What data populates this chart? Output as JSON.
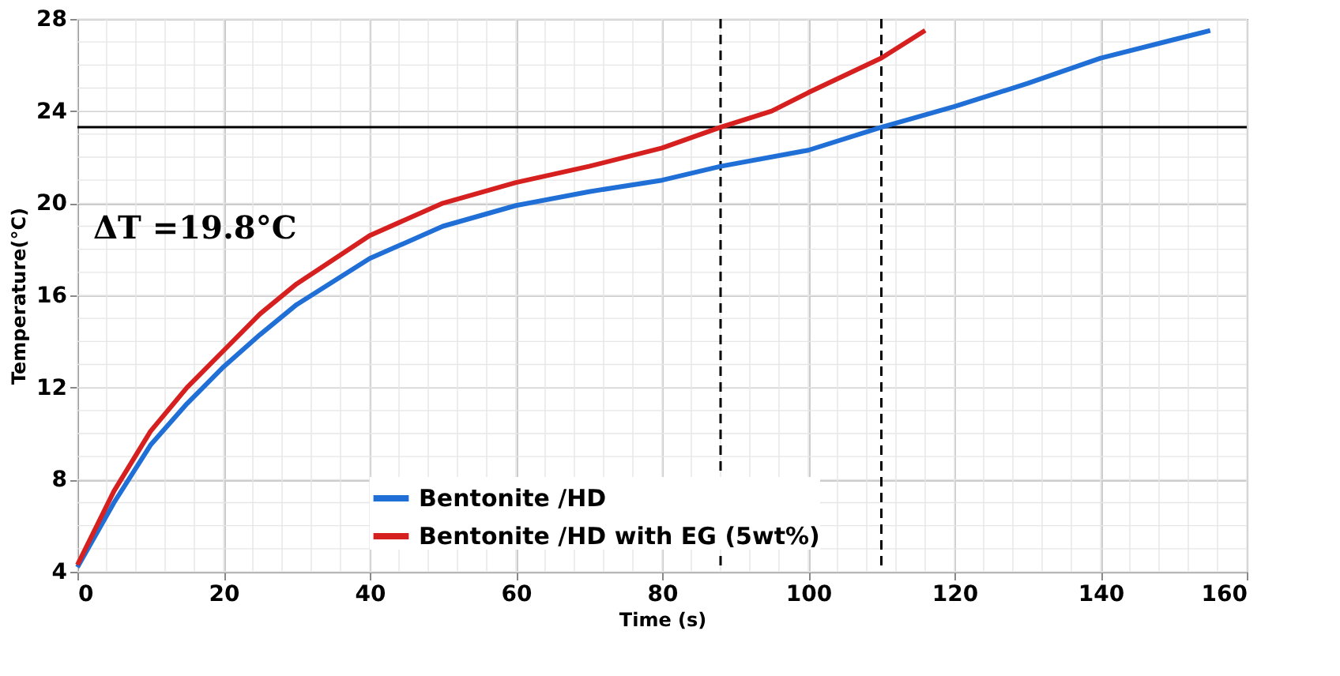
{
  "chart_data": {
    "type": "line",
    "xlabel": "Time (s)",
    "ylabel": "Temperature(°C)",
    "xlim": [
      0,
      160
    ],
    "xticks": [
      0,
      20,
      40,
      60,
      80,
      100,
      120,
      140,
      160
    ],
    "ylim": [
      4,
      28
    ],
    "yticks": [
      4,
      8,
      12,
      16,
      20,
      24,
      28
    ],
    "grid": true,
    "legend": "bottom",
    "line_style": "solid",
    "marker": "none",
    "series": [
      {
        "name": "Bentonite /HD",
        "color": "#1f6fd6",
        "x": [
          0,
          5,
          10,
          15,
          20,
          25,
          30,
          40,
          50,
          60,
          70,
          80,
          88,
          100,
          110,
          120,
          130,
          140,
          150,
          155
        ],
        "values": [
          4.2,
          7.0,
          9.5,
          11.3,
          12.9,
          14.3,
          15.6,
          17.6,
          19.0,
          19.9,
          20.5,
          21.0,
          21.6,
          22.3,
          23.3,
          24.2,
          25.2,
          26.3,
          27.1,
          27.5
        ]
      },
      {
        "name": "Bentonite /HD with EG (5wt%)",
        "color": "#d62020",
        "x": [
          0,
          5,
          10,
          15,
          20,
          25,
          30,
          40,
          50,
          60,
          70,
          80,
          88,
          95,
          100,
          110,
          116
        ],
        "values": [
          4.3,
          7.5,
          10.1,
          12.0,
          13.6,
          15.2,
          16.5,
          18.6,
          20.0,
          20.9,
          21.6,
          22.4,
          23.3,
          24.0,
          24.8,
          26.3,
          27.5
        ]
      }
    ],
    "ref_lines": [
      {
        "axis": "y",
        "value": 23.3,
        "color": "#000000",
        "line_style": "solid"
      },
      {
        "axis": "x",
        "value": 88,
        "color": "#000000",
        "line_style": "dashed"
      },
      {
        "axis": "x",
        "value": 110,
        "color": "#000000",
        "line_style": "dashed"
      }
    ],
    "annotations": [
      "ΔT =19.8°C"
    ]
  }
}
